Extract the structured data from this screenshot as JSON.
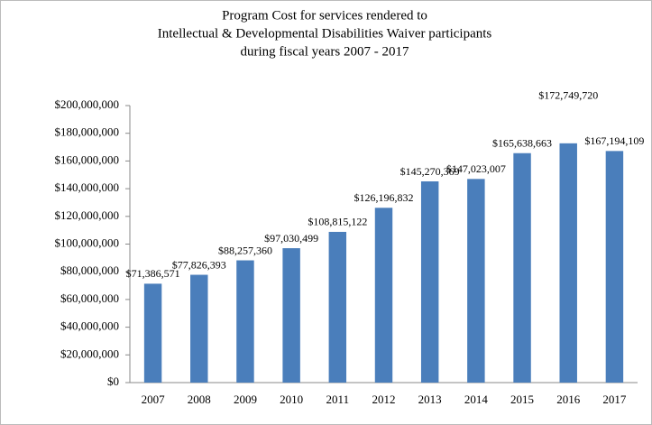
{
  "chart_data": {
    "type": "bar",
    "title": [
      "Program Cost for services rendered to",
      "Intellectual & Developmental Disabilities Waiver participants",
      "during fiscal years 2007  - 2017"
    ],
    "categories": [
      "2007",
      "2008",
      "2009",
      "2010",
      "2011",
      "2012",
      "2013",
      "2014",
      "2015",
      "2016",
      "2017"
    ],
    "values": [
      71386571,
      77826393,
      88257360,
      97030499,
      108815122,
      126196832,
      145270369,
      147023007,
      165638663,
      172749720,
      167194109
    ],
    "value_labels": [
      "$71,386,571",
      "$77,826,393",
      "$88,257,360",
      "$97,030,499",
      "$108,815,122",
      "$126,196,832",
      "$145,270,369",
      "$147,023,007",
      "$165,638,663",
      "$172,749,720",
      "$167,194,109"
    ],
    "color": "#4a7ebb",
    "ylim": [
      0,
      200000000
    ],
    "yticks": [
      {
        "value": 0,
        "label": "$0"
      },
      {
        "value": 20000000,
        "label": "$20,000,000"
      },
      {
        "value": 40000000,
        "label": "$40,000,000"
      },
      {
        "value": 60000000,
        "label": "$60,000,000"
      },
      {
        "value": 80000000,
        "label": "$80,000,000"
      },
      {
        "value": 100000000,
        "label": "$100,000,000"
      },
      {
        "value": 120000000,
        "label": "$120,000,000"
      },
      {
        "value": 140000000,
        "label": "$140,000,000"
      },
      {
        "value": 160000000,
        "label": "$160,000,000"
      },
      {
        "value": 180000000,
        "label": "$180,000,000"
      },
      {
        "value": 200000000,
        "label": "$200,000,000"
      }
    ],
    "grid": false
  }
}
